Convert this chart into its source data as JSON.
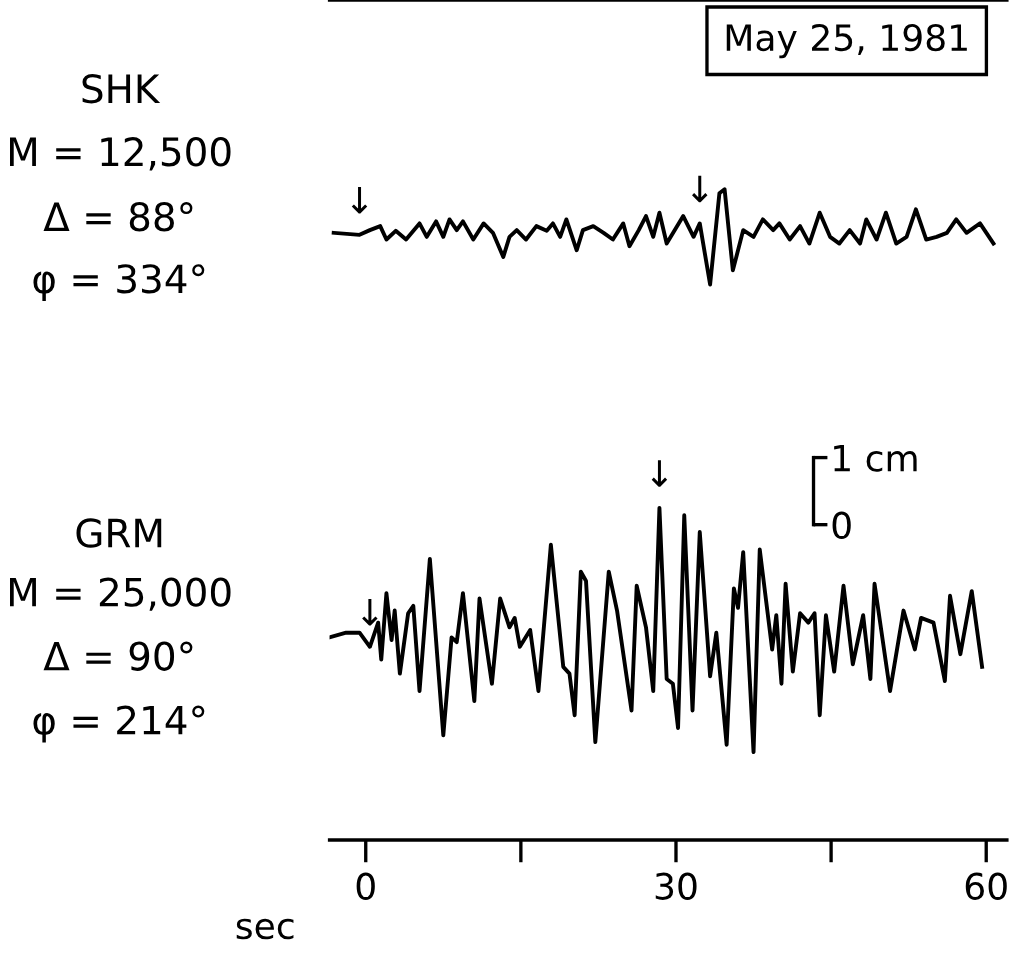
{
  "chart_data": {
    "type": "line",
    "title": "May 25, 1981",
    "xlabel": "sec",
    "xlim": [
      -3.5,
      62
    ],
    "xticks": [
      0,
      {
        "value": 15,
        "label": null
      },
      30,
      {
        "value": 45,
        "label": null
      },
      60
    ],
    "ylim": [
      -4.7,
      7.82
    ],
    "yticks": [
      {
        "value": 0,
        "label": "0"
      },
      {
        "value": 1,
        "label": "1 cm"
      }
    ],
    "marker": "none",
    "line_style": "solid",
    "grid": false,
    "annotations": [
      "SHK",
      "M = 12,500",
      "Δ = 88°",
      "φ = 334°",
      "GRM",
      "M = 25,000",
      "Δ = 90°",
      "φ = 214°",
      {
        "text": "↓",
        "x": -0.6,
        "y": 4.32
      },
      {
        "text": "↓",
        "x": 32.3,
        "y": 4.49
      },
      {
        "text": "↓",
        "x": 0.4,
        "y": -1.82
      },
      {
        "text": "↓",
        "x": 28.4,
        "y": 0.25
      }
    ],
    "series": [
      {
        "color": "#000000",
        "x": [
          -3.1,
          -0.6,
          0.4,
          1.4,
          2.0,
          2.9,
          3.9,
          5.2,
          5.9,
          6.8,
          7.5,
          8.1,
          8.8,
          9.4,
          10.4,
          11.4,
          12.3,
          13.3,
          13.9,
          14.6,
          15.5,
          16.5,
          17.5,
          18.1,
          18.8,
          19.4,
          20.4,
          21.0,
          22.0,
          23.0,
          23.9,
          24.9,
          25.5,
          26.4,
          27.1,
          27.8,
          28.4,
          29.1,
          30.7,
          31.7,
          32.3,
          33.3,
          34.2,
          34.7,
          35.5,
          36.5,
          37.5,
          38.4,
          39.4,
          40.0,
          41.0,
          42.0,
          42.9,
          43.9,
          44.9,
          45.8,
          46.8,
          47.8,
          48.4,
          49.4,
          50.3,
          51.3,
          52.3,
          53.2,
          54.2,
          55.2,
          56.2,
          57.1,
          58.1,
          59.4,
          60.7
        ],
        "values": [
          4.35,
          4.32,
          4.39,
          4.45,
          4.25,
          4.38,
          4.25,
          4.49,
          4.29,
          4.52,
          4.29,
          4.55,
          4.39,
          4.52,
          4.25,
          4.49,
          4.35,
          3.99,
          4.29,
          4.39,
          4.25,
          4.45,
          4.38,
          4.49,
          4.29,
          4.55,
          4.09,
          4.39,
          4.45,
          4.35,
          4.25,
          4.49,
          4.15,
          4.39,
          4.6,
          4.29,
          4.65,
          4.19,
          4.6,
          4.29,
          4.49,
          3.58,
          4.94,
          5.0,
          3.79,
          4.39,
          4.29,
          4.55,
          4.39,
          4.49,
          4.25,
          4.45,
          4.19,
          4.65,
          4.29,
          4.19,
          4.39,
          4.19,
          4.55,
          4.25,
          4.65,
          4.19,
          4.29,
          4.7,
          4.25,
          4.29,
          4.35,
          4.55,
          4.35,
          4.49,
          4.19
        ]
      },
      {
        "color": "#000000",
        "x": [
          -3.5,
          -1.9,
          -0.6,
          0.4,
          1.2,
          1.5,
          2.0,
          2.5,
          2.8,
          3.3,
          4.1,
          4.6,
          5.2,
          6.2,
          7.5,
          8.3,
          8.8,
          9.4,
          10.5,
          11.0,
          12.2,
          13.0,
          13.9,
          14.4,
          14.9,
          15.9,
          16.7,
          17.9,
          19.1,
          19.7,
          20.2,
          20.8,
          21.3,
          22.2,
          23.5,
          24.3,
          25.7,
          26.2,
          27.1,
          27.8,
          28.4,
          29.1,
          29.7,
          30.2,
          30.8,
          31.6,
          32.3,
          33.3,
          33.9,
          34.9,
          35.6,
          36.0,
          36.5,
          37.5,
          38.1,
          39.3,
          39.7,
          40.2,
          40.6,
          41.3,
          42.0,
          42.8,
          43.4,
          43.9,
          44.5,
          45.3,
          46.2,
          47.1,
          48.1,
          48.8,
          49.2,
          50.7,
          52.0,
          53.1,
          53.7,
          54.9,
          56.0,
          56.5,
          57.5,
          58.6,
          59.6
        ],
        "values": [
          -1.68,
          -1.61,
          -1.61,
          -1.82,
          -1.46,
          -2.01,
          -1.02,
          -1.72,
          -1.28,
          -2.22,
          -1.32,
          -1.21,
          -2.48,
          -0.51,
          -3.14,
          -1.68,
          -1.75,
          -1.02,
          -2.63,
          -1.1,
          -2.37,
          -1.1,
          -1.53,
          -1.39,
          -1.82,
          -1.57,
          -2.48,
          -0.3,
          -2.12,
          -2.22,
          -2.84,
          -0.7,
          -0.84,
          -3.24,
          -0.7,
          -1.28,
          -2.77,
          -0.91,
          -1.53,
          -2.48,
          0.25,
          -2.3,
          -2.37,
          -3.03,
          0.14,
          -2.77,
          -0.11,
          -2.26,
          -1.61,
          -3.28,
          -0.95,
          -1.24,
          -0.41,
          -3.39,
          -0.37,
          -1.86,
          -1.35,
          -2.37,
          -0.88,
          -2.19,
          -1.32,
          -1.46,
          -1.32,
          -2.84,
          -1.35,
          -2.19,
          -0.91,
          -2.08,
          -1.35,
          -2.3,
          -0.88,
          -2.48,
          -1.28,
          -1.86,
          -1.39,
          -1.46,
          -2.33,
          -1.06,
          -1.93,
          -0.99,
          -2.12
        ]
      }
    ]
  }
}
